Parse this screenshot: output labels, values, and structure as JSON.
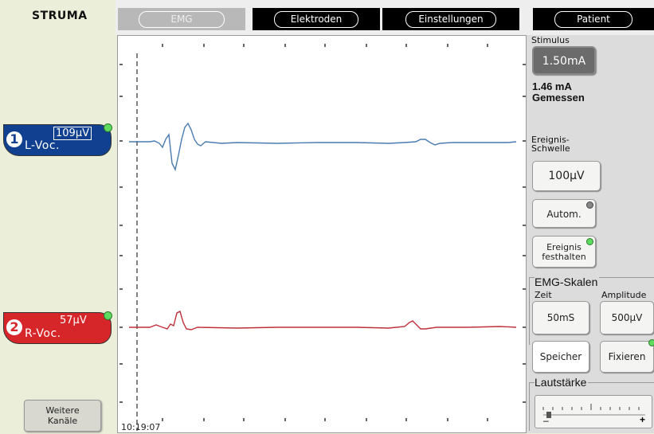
{
  "app": {
    "title": "STRUMA"
  },
  "tabs": [
    {
      "label": "EMG",
      "active": true
    },
    {
      "label": "Elektroden",
      "active": false
    },
    {
      "label": "Einstellungen",
      "active": false
    },
    {
      "label": "Patient",
      "active": false
    }
  ],
  "channels": [
    {
      "number": "1",
      "amplitude": "109µV",
      "label": "L-Voc.",
      "color": "#10408f"
    },
    {
      "number": "2",
      "amplitude": "57µV",
      "label": "R-Voc.",
      "color": "#d6262a"
    }
  ],
  "more_channels": {
    "line1": "Weitere",
    "line2": "Kanäle"
  },
  "plot": {
    "timestamp": "10:19:07",
    "trace_colors": [
      "#4a7bb0",
      "#c0303a"
    ]
  },
  "stimulus": {
    "label": "Stimulus",
    "value": "1.50mA",
    "measured_value": "1.46 mA",
    "measured_label": "Gemessen"
  },
  "threshold": {
    "label_line1": "Ereignis-",
    "label_line2": "Schwelle",
    "value": "100µV"
  },
  "autom": {
    "label": "Autom."
  },
  "event_hold": {
    "line1": "Ereignis",
    "line2": "festhalten"
  },
  "emg_scales": {
    "title": "EMG-Skalen",
    "zeit_label": "Zeit",
    "amplitude_label": "Amplitude",
    "zeit_value": "50mS",
    "amplitude_value": "500µV"
  },
  "buttons": {
    "speicher": "Speicher",
    "fixieren": "Fixieren"
  },
  "volume": {
    "title": "Lautstärke",
    "min_symbol": "–",
    "max_symbol": "+"
  }
}
